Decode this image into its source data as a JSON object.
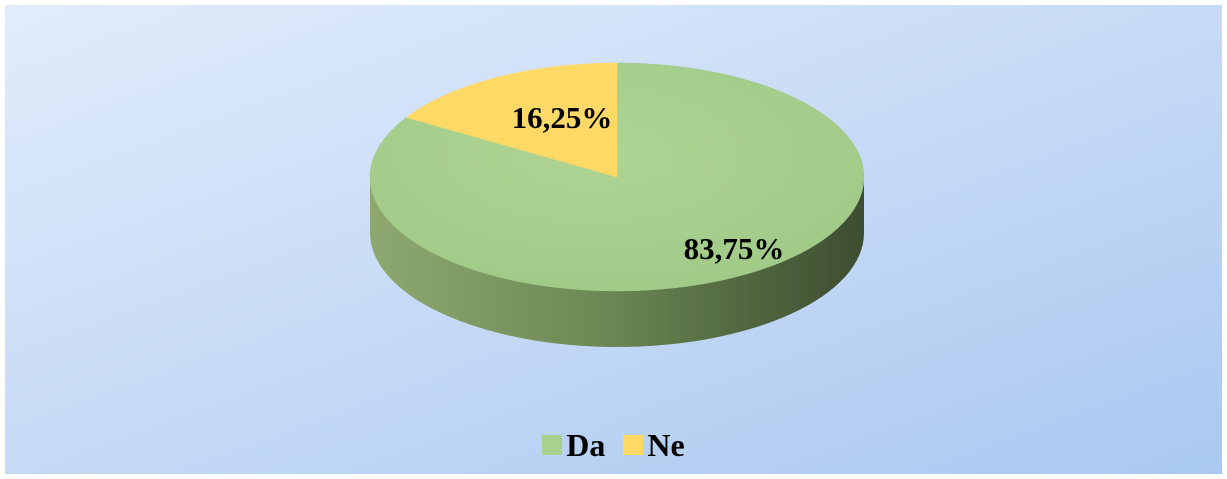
{
  "chart_data": {
    "type": "pie",
    "style": "3d",
    "categories": [
      "Da",
      "Ne"
    ],
    "values": [
      83.75,
      16.25
    ],
    "data_labels": [
      "83,75%",
      "16,25%"
    ],
    "colors": [
      "#a9d18e",
      "#ffd966"
    ],
    "side_colors": [
      "#6f8f55",
      "#c9a646"
    ],
    "legend": "bottom",
    "title": ""
  }
}
